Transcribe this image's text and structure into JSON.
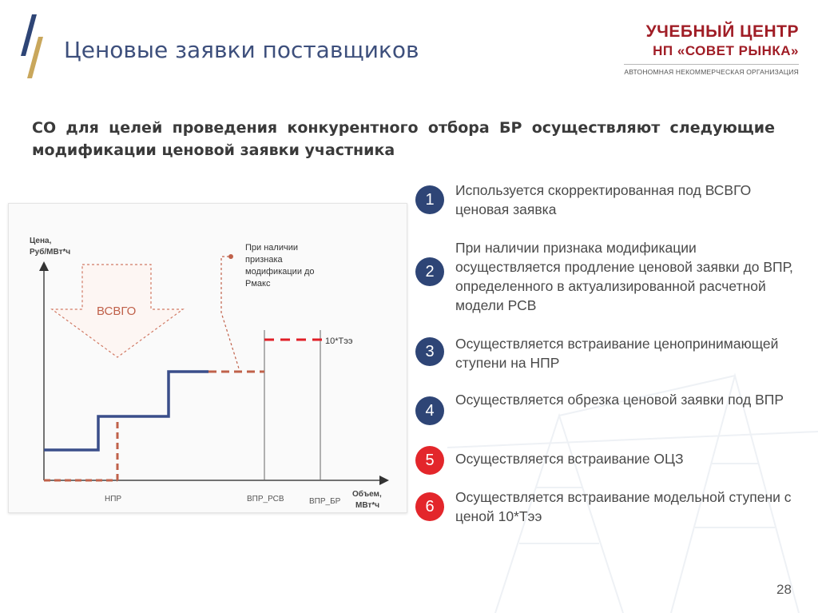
{
  "header": {
    "title": "Ценовые заявки поставщиков",
    "brand_line1": "УЧЕБНЫЙ ЦЕНТР",
    "brand_line2": "НП «СОВЕТ РЫНКА»",
    "brand_line3": "АВТОНОМНАЯ НЕКОММЕРЧЕСКАЯ ОРГАНИЗАЦИЯ"
  },
  "intro": "СО для целей проведения конкурентного отбора БР осуществляют следующие модификации ценовой заявки участника",
  "diagram": {
    "y_axis_label_1": "Цена,",
    "y_axis_label_2": "Руб/МВт*ч",
    "x_axis_label_1": "Объем,",
    "x_axis_label_2": "МВт*ч",
    "arrow_label": "ВСВГО",
    "note_1": "При наличии",
    "note_2": "признака",
    "note_3": "модификации до",
    "note_4": "Рмакс",
    "price_label": "10*Тээ",
    "tick_npr": "НПР",
    "tick_vpr_rsv": "ВПР_РСВ",
    "tick_vpr_br": "ВПР_БР"
  },
  "items": [
    {
      "number": "1",
      "text": "Используется скорректированная под ВСВГО ценовая заявка",
      "color": "#2e4576"
    },
    {
      "number": "2",
      "text": "При наличии признака модификации осуществляется продление ценовой заявки до ВПР, определенного в актуализированной расчетной модели РСВ",
      "color": "#2e4576"
    },
    {
      "number": "3",
      "text": "Осуществляется встраивание ценопринимающей ступени на НПР",
      "color": "#2e4576"
    },
    {
      "number": "4",
      "text": "Осуществляется обрезка ценовой заявки под ВПР",
      "color": "#2e4576"
    },
    {
      "number": "5",
      "text": "Осуществляется встраивание ОЦЗ",
      "color": "#e3262b"
    },
    {
      "number": "6",
      "text": "Осуществляется встраивание модельной ступени с ценой 10*Тээ",
      "color": "#e3262b"
    }
  ],
  "page_number": "28",
  "colors": {
    "accent_blue": "#3d4f7c",
    "brand_red": "#a01d26",
    "series_blue": "#3a4e8a",
    "series_dashed": "#c0614a",
    "series_red": "#e01e26"
  }
}
